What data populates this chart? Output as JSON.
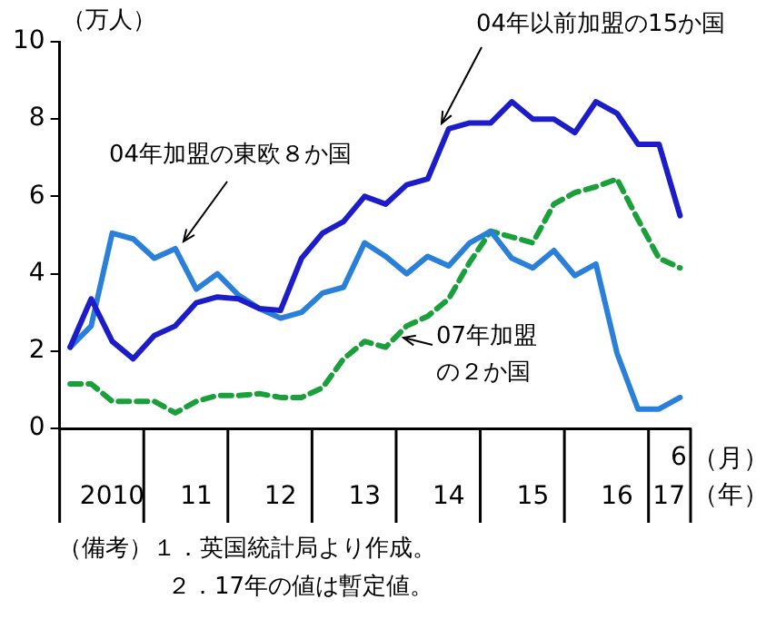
{
  "chart_data": {
    "type": "line",
    "ylabel": "（万人）",
    "xlabel": "（年）",
    "categories": [
      null,
      null,
      "2010",
      null,
      null,
      null,
      "11",
      null,
      null,
      null,
      "12",
      null,
      null,
      null,
      "13",
      null,
      null,
      null,
      "14",
      null,
      null,
      null,
      "15",
      null,
      null,
      null,
      "16",
      null,
      null,
      "17"
    ],
    "series": [
      {
        "name": "04年以前加盟の15か国",
        "color": "#1c1cc8",
        "values": [
          2.1,
          3.35,
          2.25,
          1.8,
          2.4,
          2.65,
          3.25,
          3.4,
          3.35,
          3.1,
          3.05,
          4.4,
          5.05,
          5.35,
          6.0,
          5.8,
          6.3,
          6.45,
          7.75,
          7.9,
          7.9,
          8.45,
          8.0,
          8.0,
          7.65,
          8.45,
          8.15,
          7.35,
          7.35,
          5.5
        ]
      },
      {
        "name": "04年加盟の東欧８か国",
        "color": "#2a80d8",
        "values": [
          2.1,
          2.65,
          5.05,
          4.9,
          4.4,
          4.65,
          3.6,
          4.0,
          3.45,
          3.1,
          2.85,
          3.0,
          3.5,
          3.65,
          4.8,
          4.45,
          4.0,
          4.45,
          4.2,
          4.8,
          5.1,
          4.4,
          4.15,
          4.6,
          3.95,
          4.25,
          1.95,
          0.5,
          0.5,
          0.8
        ]
      },
      {
        "name": "07年加盟の２か国",
        "color": "#1aa03a",
        "line_style": "dashed",
        "values": [
          1.15,
          1.15,
          0.7,
          0.7,
          0.7,
          0.4,
          0.7,
          0.85,
          0.85,
          0.9,
          0.8,
          0.8,
          1.05,
          1.8,
          2.25,
          2.1,
          2.65,
          2.9,
          3.35,
          4.3,
          5.1,
          4.95,
          4.8,
          5.8,
          6.1,
          6.25,
          6.45,
          5.4,
          4.4,
          4.15
        ]
      }
    ],
    "ylim": [
      0,
      10
    ],
    "yticks": [
      0,
      2,
      4,
      6,
      8,
      10
    ],
    "grid": false,
    "legend": false,
    "marker": "none",
    "annotations": [
      "6",
      "（月）",
      "（備考）１．英国統計局より作成。",
      "２．17年の値は暫定値。"
    ]
  }
}
